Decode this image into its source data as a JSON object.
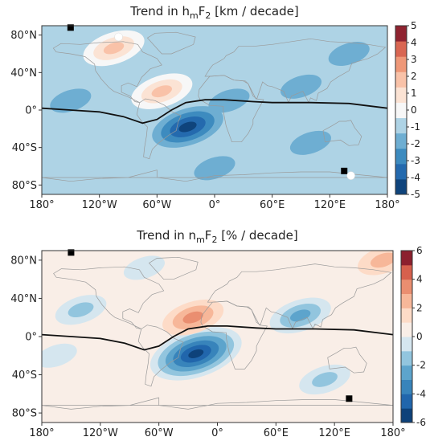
{
  "chart_data": [
    {
      "type": "heatmap",
      "title": "Trend in hmF2 [km / decade]",
      "title_parts": {
        "pre": "Trend in h",
        "sub1": "m",
        "mid": "F",
        "sub2": "2",
        "post": " [km / decade]"
      },
      "x_ticks": [
        "180°",
        "120°W",
        "60°W",
        "0°",
        "60°E",
        "120°E",
        "180°"
      ],
      "x_tick_values": [
        -180,
        -120,
        -60,
        0,
        60,
        120,
        180
      ],
      "y_ticks": [
        "80°S",
        "40°S",
        "0°",
        "40°N",
        "80°N"
      ],
      "y_tick_values": [
        -80,
        -40,
        0,
        40,
        80
      ],
      "xlim": [
        -180,
        180
      ],
      "ylim": [
        -90,
        90
      ],
      "colorbar": {
        "ticks": [
          "5",
          "4",
          "3",
          "2",
          "1",
          "0",
          "-1",
          "-2",
          "-3",
          "-4",
          "-5"
        ],
        "tick_values": [
          5,
          4,
          3,
          2,
          1,
          0,
          -1,
          -2,
          -3,
          -4,
          -5
        ],
        "range": [
          -5,
          5
        ],
        "colormap": "RdBu_r"
      },
      "anomalies": [
        {
          "lon": -28,
          "lat": -18,
          "value": -5
        },
        {
          "lon": -55,
          "lat": 20,
          "value": 1.5
        },
        {
          "lon": -105,
          "lat": 66,
          "value": 1.5
        },
        {
          "lon": 15,
          "lat": 10,
          "value": -2
        },
        {
          "lon": 90,
          "lat": 25,
          "value": -2
        },
        {
          "lon": -150,
          "lat": 10,
          "value": -1.5
        },
        {
          "lon": 100,
          "lat": -35,
          "value": -1.5
        },
        {
          "lon": 140,
          "lat": 60,
          "value": -1
        },
        {
          "lon": 0,
          "lat": -62,
          "value": -1.5
        }
      ],
      "background_value": -1.2,
      "magnetic_equator": [
        [
          -180,
          2
        ],
        [
          -150,
          0
        ],
        [
          -120,
          -2
        ],
        [
          -95,
          -7
        ],
        [
          -75,
          -14
        ],
        [
          -60,
          -10
        ],
        [
          -45,
          0
        ],
        [
          -30,
          8
        ],
        [
          -10,
          11
        ],
        [
          10,
          11
        ],
        [
          40,
          9
        ],
        [
          60,
          8
        ],
        [
          100,
          8
        ],
        [
          140,
          7
        ],
        [
          180,
          2
        ]
      ],
      "square_markers": [
        {
          "lon": -150,
          "lat": 88
        },
        {
          "lon": 135,
          "lat": -65
        }
      ],
      "circle_markers": [
        {
          "lon": -100,
          "lat": 78
        },
        {
          "lon": 142,
          "lat": -70
        }
      ]
    },
    {
      "type": "heatmap",
      "title": "Trend in nmF2 [% / decade]",
      "title_parts": {
        "pre": "Trend in n",
        "sub1": "m",
        "mid": "F",
        "sub2": "2",
        "post": " [% / decade]"
      },
      "x_ticks": [
        "180°",
        "120°W",
        "60°W",
        "0°",
        "60°E",
        "120°E",
        "180°"
      ],
      "x_tick_values": [
        -180,
        -120,
        -60,
        0,
        60,
        120,
        180
      ],
      "y_ticks": [
        "80°S",
        "40°S",
        "0°",
        "40°N",
        "80°N"
      ],
      "y_tick_values": [
        -80,
        -40,
        0,
        40,
        80
      ],
      "xlim": [
        -180,
        180
      ],
      "ylim": [
        -90,
        90
      ],
      "colorbar": {
        "ticks": [
          "6",
          "4",
          "2",
          "0",
          "-2",
          "-4",
          "-6"
        ],
        "tick_values": [
          6,
          4,
          2,
          0,
          -2,
          -4,
          -6
        ],
        "range": [
          -6,
          6
        ],
        "colormap": "RdBu_r"
      },
      "anomalies": [
        {
          "lon": -22,
          "lat": -18,
          "value": -6
        },
        {
          "lon": -25,
          "lat": 20,
          "value": 3
        },
        {
          "lon": 85,
          "lat": 22,
          "value": -2.5
        },
        {
          "lon": -140,
          "lat": 28,
          "value": -1.5
        },
        {
          "lon": -75,
          "lat": 72,
          "value": -1
        },
        {
          "lon": -165,
          "lat": -20,
          "value": -1
        },
        {
          "lon": 110,
          "lat": -45,
          "value": -1.5
        },
        {
          "lon": 170,
          "lat": 80,
          "value": 2
        }
      ],
      "background_value": 0,
      "magnetic_equator": [
        [
          -180,
          2
        ],
        [
          -150,
          0
        ],
        [
          -120,
          -2
        ],
        [
          -95,
          -7
        ],
        [
          -75,
          -14
        ],
        [
          -60,
          -10
        ],
        [
          -45,
          0
        ],
        [
          -30,
          8
        ],
        [
          -10,
          11
        ],
        [
          10,
          11
        ],
        [
          40,
          9
        ],
        [
          60,
          8
        ],
        [
          100,
          8
        ],
        [
          140,
          7
        ],
        [
          180,
          2
        ]
      ],
      "square_markers": [
        {
          "lon": -150,
          "lat": 88
        },
        {
          "lon": 135,
          "lat": -65
        }
      ],
      "circle_markers": []
    }
  ]
}
